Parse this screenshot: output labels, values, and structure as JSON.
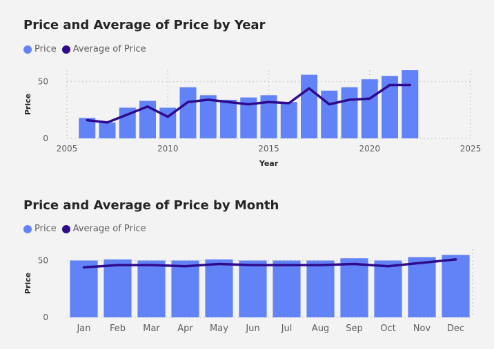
{
  "colors": {
    "bar": "#6183f7",
    "line": "#2e0b8c",
    "background": "#f3f3f3"
  },
  "chart_data": [
    {
      "type": "bar",
      "title": "Price and Average of Price by Year",
      "legend": [
        {
          "label": "Price",
          "color": "#6183f7"
        },
        {
          "label": "Average of Price",
          "color": "#2e0b8c"
        }
      ],
      "legend_position": "top-left",
      "xlabel": "Year",
      "ylabel": "Price",
      "xlim": [
        2005,
        2025
      ],
      "ylim": [
        0,
        60
      ],
      "x_ticks": [
        "2005",
        "2010",
        "2015",
        "2020",
        "2025"
      ],
      "x_tick_values": [
        2005,
        2010,
        2015,
        2020,
        2025
      ],
      "y_ticks": [
        "0",
        "50"
      ],
      "y_tick_values": [
        0,
        50
      ],
      "grid": true,
      "x": [
        2006,
        2007,
        2008,
        2009,
        2010,
        2011,
        2012,
        2013,
        2014,
        2015,
        2016,
        2017,
        2018,
        2019,
        2020,
        2021,
        2022
      ],
      "series": [
        {
          "name": "Price",
          "type": "bar",
          "values": [
            18,
            14,
            27,
            33,
            27,
            45,
            38,
            34,
            36,
            38,
            32,
            56,
            42,
            45,
            52,
            55,
            60
          ]
        },
        {
          "name": "Average of Price",
          "type": "line",
          "values": [
            16,
            14,
            21,
            28,
            19,
            32,
            34,
            32,
            30,
            32,
            31,
            44,
            30,
            34,
            35,
            47,
            47
          ]
        }
      ]
    },
    {
      "type": "bar",
      "title": "Price and Average of Price by Month",
      "legend": [
        {
          "label": "Price",
          "color": "#6183f7"
        },
        {
          "label": "Average of Price",
          "color": "#2e0b8c"
        }
      ],
      "legend_position": "top-left",
      "xlabel": "",
      "ylabel": "Price",
      "ylim": [
        0,
        60
      ],
      "y_ticks": [
        "0",
        "50"
      ],
      "y_tick_values": [
        0,
        50
      ],
      "grid": true,
      "categories": [
        "Jan",
        "Feb",
        "Mar",
        "Apr",
        "May",
        "Jun",
        "Jul",
        "Aug",
        "Sep",
        "Oct",
        "Nov",
        "Dec"
      ],
      "series": [
        {
          "name": "Price",
          "type": "bar",
          "values": [
            50,
            51,
            50,
            50,
            51,
            50,
            50,
            50,
            52,
            50,
            53,
            55
          ]
        },
        {
          "name": "Average of Price",
          "type": "line",
          "values": [
            44,
            46,
            46,
            45,
            47,
            46,
            46,
            46,
            47,
            45,
            48,
            51
          ]
        }
      ]
    }
  ]
}
